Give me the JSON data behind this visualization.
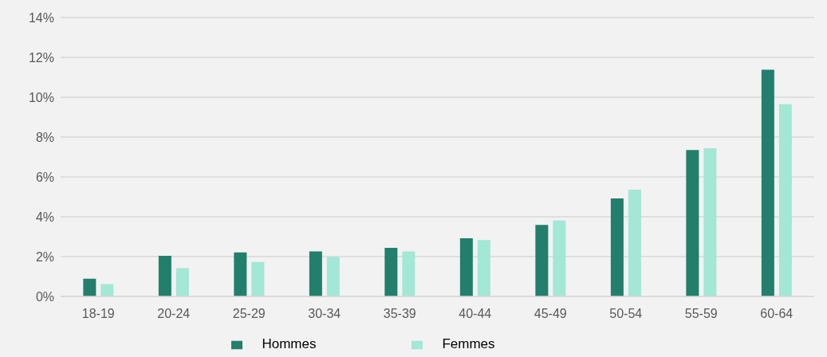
{
  "chart_data": {
    "type": "bar",
    "categories": [
      "18-19",
      "20-24",
      "25-29",
      "30-34",
      "35-39",
      "40-44",
      "45-49",
      "50-54",
      "55-59",
      "60-64"
    ],
    "series": [
      {
        "name": "Hommes",
        "color": "#217f6b",
        "values": [
          0.89,
          2.04,
          2.21,
          2.26,
          2.44,
          2.92,
          3.59,
          4.92,
          7.35,
          11.38
        ]
      },
      {
        "name": "Femmes",
        "color": "#a3e7d6",
        "values": [
          0.62,
          1.42,
          1.73,
          1.99,
          2.26,
          2.83,
          3.81,
          5.36,
          7.44,
          9.65
        ]
      }
    ],
    "ylim": [
      0,
      14
    ],
    "yticks": [
      {
        "value": 0,
        "label": "0%"
      },
      {
        "value": 2,
        "label": "2%"
      },
      {
        "value": 4,
        "label": "4%"
      },
      {
        "value": 6,
        "label": "6%"
      },
      {
        "value": 8,
        "label": "8%"
      },
      {
        "value": 10,
        "label": "10%"
      },
      {
        "value": 12,
        "label": "12%"
      },
      {
        "value": 14,
        "label": "14%"
      }
    ],
    "grid": "y",
    "legend": "bottom"
  }
}
